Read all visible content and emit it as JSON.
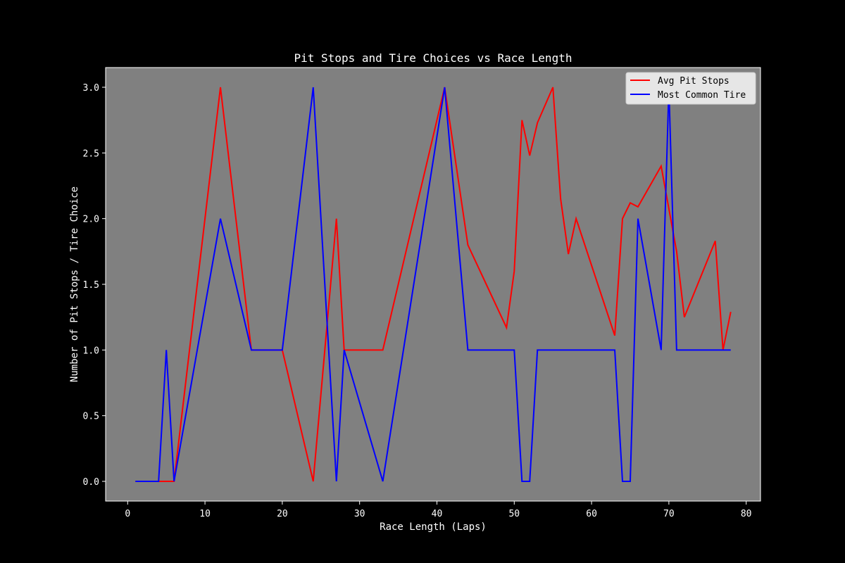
{
  "chart_data": {
    "type": "line",
    "title": "Pit Stops and Tire Choices vs Race Length",
    "xlabel": "Race Length (Laps)",
    "ylabel": "Number of Pit Stops / Tire Choice",
    "xlim": [
      -2.85,
      81.85
    ],
    "ylim": [
      -0.15,
      3.15
    ],
    "xticks": [
      0,
      10,
      20,
      30,
      40,
      50,
      60,
      70,
      80
    ],
    "xtick_labels": [
      "0",
      "10",
      "20",
      "30",
      "40",
      "50",
      "60",
      "70",
      "80"
    ],
    "yticks": [
      0.0,
      0.5,
      1.0,
      1.5,
      2.0,
      2.5,
      3.0
    ],
    "ytick_labels": [
      "0.0",
      "0.5",
      "1.0",
      "1.5",
      "2.0",
      "2.5",
      "3.0"
    ],
    "grid": false,
    "legend_position": "top-right",
    "background": "#808080",
    "figure_background": "#000000",
    "series": [
      {
        "name": "Avg Pit Stops",
        "color": "#ff0000",
        "x": [
          1,
          4,
          6,
          12,
          16,
          20,
          24,
          27,
          28,
          33,
          41,
          44,
          49,
          50,
          51,
          52,
          53,
          55,
          56,
          57,
          58,
          63,
          64,
          65,
          66,
          69,
          71,
          72,
          76,
          77,
          78
        ],
        "y": [
          0,
          0,
          0,
          3,
          1,
          1,
          0,
          2,
          1,
          1,
          3,
          1.8,
          1.17,
          1.6,
          2.75,
          2.48,
          2.73,
          3,
          2.15,
          1.73,
          2,
          1.11,
          2,
          2.12,
          2.09,
          2.4,
          1.75,
          1.25,
          1.83,
          1,
          1.29
        ]
      },
      {
        "name": "Most Common Tire",
        "color": "#0000ff",
        "x": [
          1,
          4,
          5,
          6,
          12,
          16,
          20,
          24,
          27,
          28,
          33,
          41,
          44,
          50,
          51,
          52,
          53,
          63,
          64,
          65,
          66,
          69,
          70,
          71,
          78
        ],
        "y": [
          0,
          0,
          1,
          0,
          2,
          1,
          1,
          3,
          0,
          1,
          0,
          3,
          1,
          1,
          0,
          0,
          1,
          1,
          0,
          0,
          2,
          1,
          3,
          1,
          1
        ]
      }
    ]
  }
}
